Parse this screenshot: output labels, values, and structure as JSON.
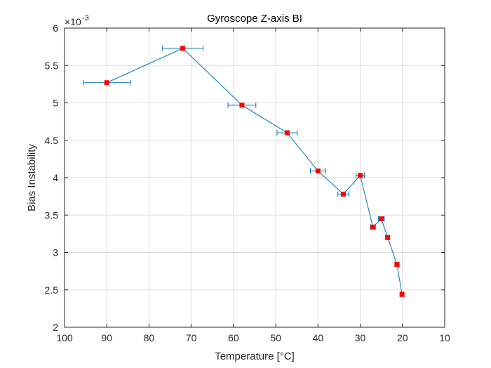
{
  "chart_data": {
    "type": "line",
    "title": "Gyroscope Z-axis BI",
    "xlabel": "Temperature [°C]",
    "ylabel": "Bias Instability",
    "y_exponent_label": "×10",
    "y_exponent_power": "-3",
    "xlim": [
      100,
      10
    ],
    "ylim": [
      2,
      6
    ],
    "x_reversed": true,
    "grid": true,
    "x_tick_labels": [
      "100",
      "90",
      "80",
      "70",
      "60",
      "50",
      "40",
      "30",
      "20",
      "10"
    ],
    "y_tick_labels": [
      "2",
      "2.5",
      "3",
      "3.5",
      "4",
      "4.5",
      "5",
      "5.5",
      "6"
    ],
    "x_tick_values": [
      100,
      90,
      80,
      70,
      60,
      50,
      40,
      30,
      20,
      10
    ],
    "y_tick_values": [
      2,
      2.5,
      3,
      3.5,
      4,
      4.5,
      5,
      5.5,
      6
    ],
    "y_scale_factor": 0.001,
    "line_color": "#0072BD",
    "marker_color": "#FF0000",
    "series": [
      {
        "x": [
          90,
          72,
          58,
          47.3,
          40,
          34,
          30,
          27,
          25,
          23.5,
          21.3,
          20.1
        ],
        "y": [
          5.27,
          5.73,
          4.97,
          4.6,
          4.09,
          3.78,
          4.03,
          3.34,
          3.45,
          3.2,
          2.84,
          2.44
        ],
        "xerr": [
          5.6,
          4.8,
          3.3,
          2.4,
          1.8,
          1.3,
          1.0,
          0.6,
          0.7,
          0.5,
          0.5,
          0.4
        ]
      }
    ]
  }
}
